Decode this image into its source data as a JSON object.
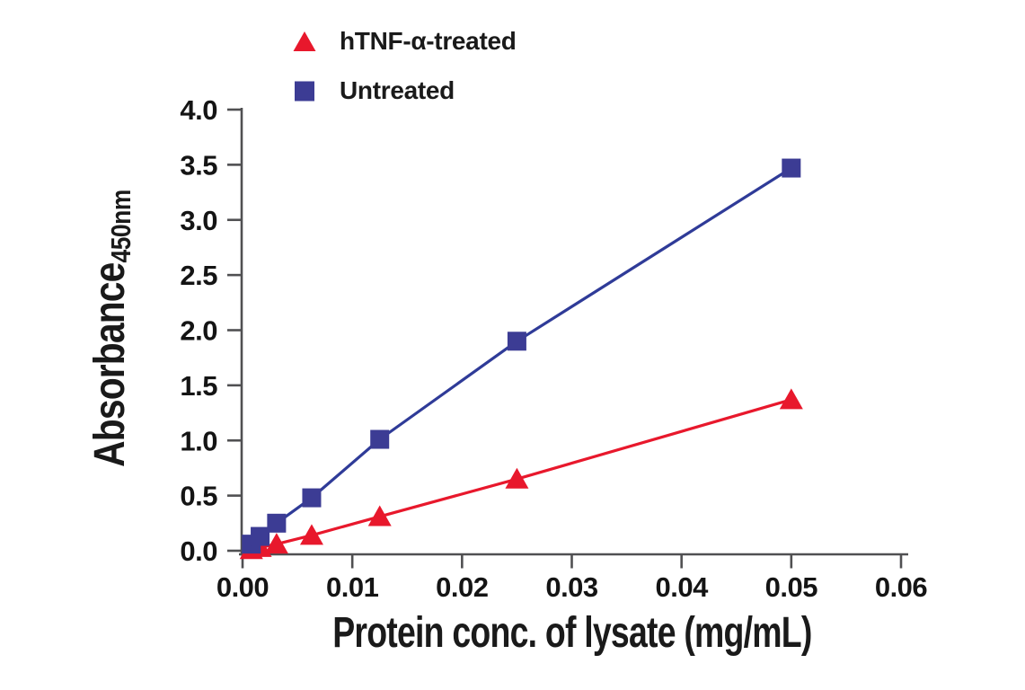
{
  "figure": {
    "background": "#ffffff",
    "text_color": "#1a1a1a",
    "axis_color": "#505052"
  },
  "chart_data": {
    "type": "line",
    "title": "",
    "xlabel": "Protein conc. of lysate (mg/mL)",
    "ylabel": "Absorbance",
    "ylabel_subscript": "450nm",
    "xlim": [
      0,
      0.06
    ],
    "ylim": [
      0,
      4.0
    ],
    "grid": false,
    "legend_position": "top",
    "x_ticks": [
      {
        "value": 0.0,
        "label": "0.00"
      },
      {
        "value": 0.01,
        "label": "0.01"
      },
      {
        "value": 0.02,
        "label": "0.02"
      },
      {
        "value": 0.03,
        "label": "0.03"
      },
      {
        "value": 0.04,
        "label": "0.04"
      },
      {
        "value": 0.05,
        "label": "0.05"
      },
      {
        "value": 0.06,
        "label": "0.06"
      }
    ],
    "y_ticks": [
      {
        "value": 0.0,
        "label": "0.0"
      },
      {
        "value": 0.5,
        "label": "0.5"
      },
      {
        "value": 1.0,
        "label": "1.0"
      },
      {
        "value": 1.5,
        "label": "1.5"
      },
      {
        "value": 2.0,
        "label": "2.0"
      },
      {
        "value": 2.5,
        "label": "2.5"
      },
      {
        "value": 3.0,
        "label": "3.0"
      },
      {
        "value": 3.5,
        "label": "3.5"
      },
      {
        "value": 4.0,
        "label": "4.0"
      }
    ],
    "series": [
      {
        "name": "hTNF-α-treated",
        "marker": "triangle",
        "marker_color": "#e8182c",
        "line_color": "#e8182c",
        "points": [
          [
            0.0008,
            0.01
          ],
          [
            0.0016,
            0.03
          ],
          [
            0.0031,
            0.06
          ],
          [
            0.0063,
            0.14
          ],
          [
            0.0125,
            0.31
          ],
          [
            0.025,
            0.65
          ],
          [
            0.05,
            1.37
          ]
        ]
      },
      {
        "name": "Untreated",
        "marker": "square",
        "marker_color": "#3c3c94",
        "line_color": "#2f3b98",
        "points": [
          [
            0.0008,
            0.06
          ],
          [
            0.0016,
            0.13
          ],
          [
            0.0031,
            0.25
          ],
          [
            0.0063,
            0.48
          ],
          [
            0.0125,
            1.01
          ],
          [
            0.025,
            1.9
          ],
          [
            0.05,
            3.47
          ]
        ]
      }
    ]
  }
}
